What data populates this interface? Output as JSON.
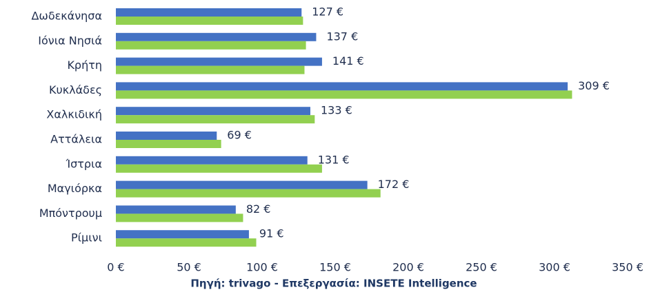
{
  "chart_data": {
    "type": "bar",
    "orientation": "horizontal",
    "categories": [
      "Δωδεκάνησα",
      "Ιόνια Νησιά",
      "Κρήτη",
      "Κυκλάδες",
      "Χαλκιδική",
      "Αττάλεια",
      "Ίστρια",
      "Μαγιόρκα",
      "Μπόντρουμ",
      "Ρίμινι"
    ],
    "series": [
      {
        "color": "#4472c4",
        "values": [
          127,
          137,
          141,
          309,
          133,
          69,
          131,
          172,
          82,
          91
        ],
        "value_labels": [
          "127 €",
          "137 €",
          "141 €",
          "309 €",
          "133 €",
          "69 €",
          "131 €",
          "172 €",
          "82 €",
          "91 €"
        ]
      },
      {
        "color": "#92d050",
        "values": [
          128,
          130,
          129,
          312,
          136,
          72,
          141,
          181,
          87,
          96
        ]
      }
    ],
    "xlim": [
      0,
      350
    ],
    "xticks": [
      {
        "value": 0,
        "label": "0 €"
      },
      {
        "value": 50,
        "label": "50 €"
      },
      {
        "value": 100,
        "label": "100 €"
      },
      {
        "value": 150,
        "label": "150 €"
      },
      {
        "value": 200,
        "label": "200 €"
      },
      {
        "value": 250,
        "label": "250 €"
      },
      {
        "value": 300,
        "label": "300 €"
      },
      {
        "value": 350,
        "label": "350 €"
      }
    ],
    "grid": false,
    "caption": "Πηγή: trivago - Επεξεργασία: INSETE Intelligence"
  }
}
